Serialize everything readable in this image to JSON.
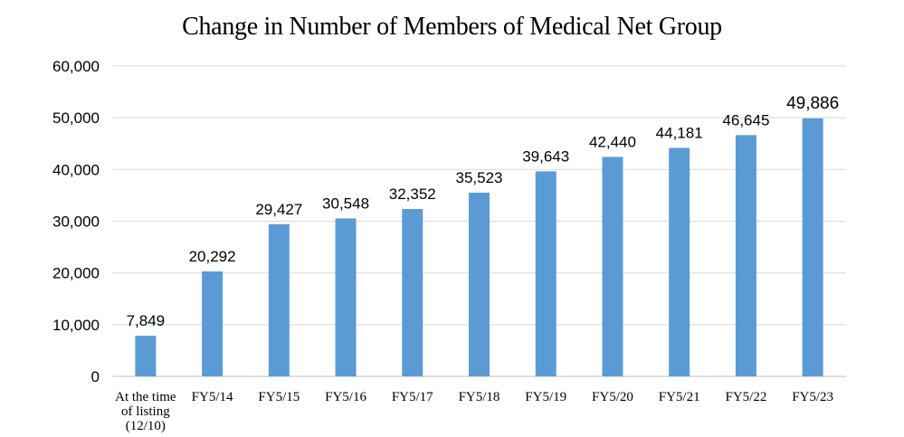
{
  "chart_data": {
    "type": "bar",
    "title": "Change in Number of Members of Medical Net Group",
    "xlabel": "",
    "ylabel": "",
    "ylim": [
      0,
      60000
    ],
    "yticks": [
      "0",
      "10,000",
      "20,000",
      "30,000",
      "40,000",
      "50,000",
      "60,000"
    ],
    "grid": true,
    "categories": [
      [
        "At the time",
        "of listing",
        "(12/10)"
      ],
      [
        "FY5/14"
      ],
      [
        "FY5/15"
      ],
      [
        "FY5/16"
      ],
      [
        "FY5/17"
      ],
      [
        "FY5/18"
      ],
      [
        "FY5/19"
      ],
      [
        "FY5/20"
      ],
      [
        "FY5/21"
      ],
      [
        "FY5/22"
      ],
      [
        "FY5/23"
      ]
    ],
    "values": [
      7849,
      20292,
      29427,
      30548,
      32352,
      35523,
      39643,
      42440,
      44181,
      46645,
      49886
    ],
    "value_labels": [
      "7,849",
      "20,292",
      "29,427",
      "30,548",
      "32,352",
      "35,523",
      "39,643",
      "42,440",
      "44,181",
      "46,645",
      "49,886"
    ],
    "bar_color": "#5b9bd5",
    "grid_color": "#d9d9d9"
  }
}
